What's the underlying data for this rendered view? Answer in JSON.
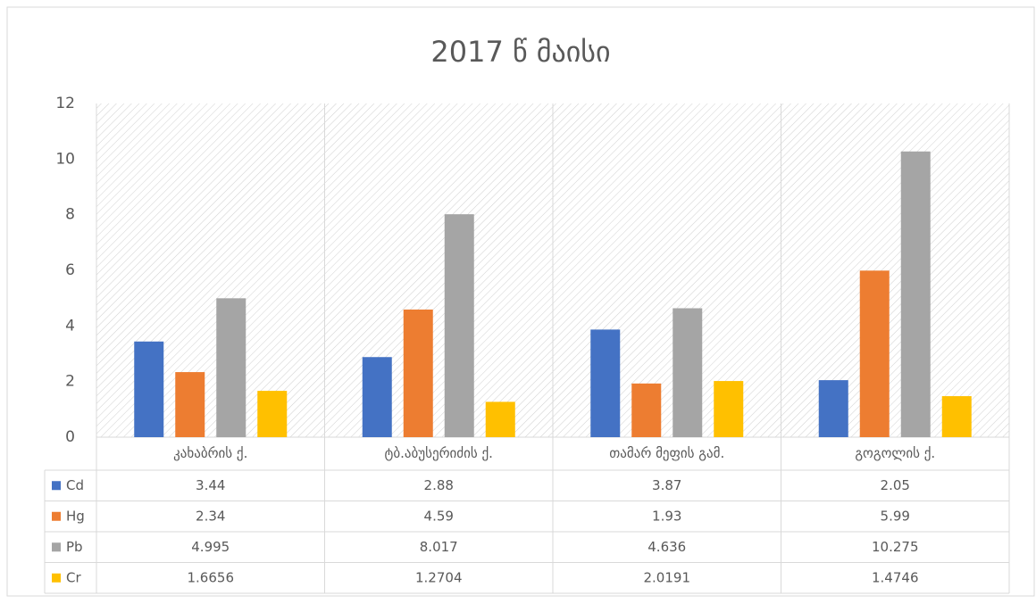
{
  "chart_data": {
    "type": "bar",
    "title": "2017 წ მაისი",
    "categories": [
      "კახაბრის ქ.",
      "ტბ.აბუსერიძის ქ.",
      "თამარ მეფის გამ.",
      "გოგოლის  ქ."
    ],
    "series": [
      {
        "name": "Cd",
        "color": "#4472c4",
        "values": [
          3.44,
          2.88,
          3.87,
          2.05
        ]
      },
      {
        "name": "Hg",
        "color": "#ed7d31",
        "values": [
          2.34,
          4.59,
          1.93,
          5.99
        ]
      },
      {
        "name": "Pb",
        "color": "#a5a5a5",
        "values": [
          4.995,
          8.017,
          4.636,
          10.275
        ]
      },
      {
        "name": "Cr",
        "color": "#ffc000",
        "values": [
          1.6656,
          1.2704,
          2.0191,
          1.4746
        ]
      }
    ],
    "ylim": [
      0,
      12
    ],
    "yticks": [
      0,
      2,
      4,
      6,
      8,
      10,
      12
    ],
    "grid": false,
    "legend": "table"
  }
}
